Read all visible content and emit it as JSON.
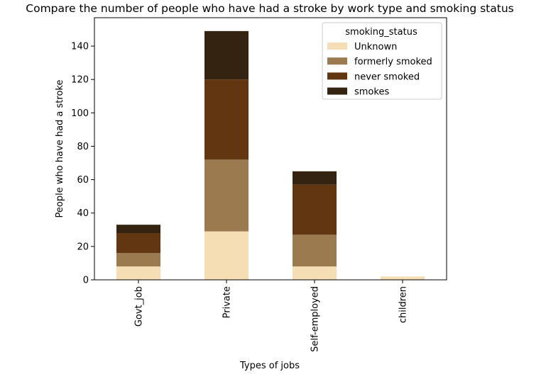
{
  "chart_data": {
    "type": "bar",
    "stacked": true,
    "title": "Compare the number of people who have had a stroke by work type and smoking status",
    "xlabel": "Types of jobs",
    "ylabel": "People who have had a stroke",
    "categories": [
      "Govt_job",
      "Private",
      "Self-employed",
      "children"
    ],
    "ylim": [
      0,
      157
    ],
    "yticks": [
      0,
      20,
      40,
      60,
      80,
      100,
      120,
      140
    ],
    "legend": {
      "title": "smoking_status",
      "placement": "upper right"
    },
    "series": [
      {
        "name": "Unknown",
        "color": "#f5deb3",
        "values": [
          8,
          29,
          8,
          2
        ]
      },
      {
        "name": "formerly smoked",
        "color": "#9c7a50",
        "values": [
          8,
          43,
          19,
          0
        ]
      },
      {
        "name": "never smoked",
        "color": "#623611",
        "values": [
          12,
          48,
          30,
          0
        ]
      },
      {
        "name": "smokes",
        "color": "#352311",
        "values": [
          5,
          29,
          8,
          0
        ]
      }
    ],
    "grid": false
  }
}
